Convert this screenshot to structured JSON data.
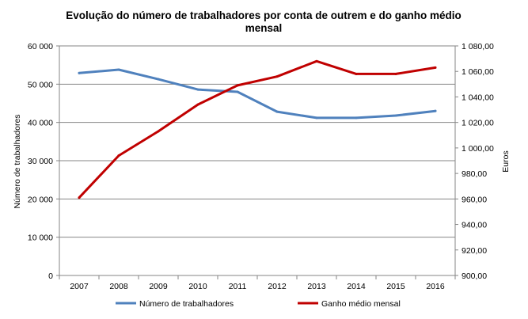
{
  "chart_data": {
    "type": "line",
    "title": "Evolução do número de trabalhadores por conta de outrem e do ganho médio mensal",
    "title_lines": [
      "Evolução do número de trabalhadores por conta de outrem e do ganho médio",
      "mensal"
    ],
    "categories": [
      "2007",
      "2008",
      "2009",
      "2010",
      "2011",
      "2012",
      "2013",
      "2014",
      "2015",
      "2016"
    ],
    "ylabel": "Número de trabalhadores",
    "y2label": "Euros",
    "ylim": [
      0,
      60000
    ],
    "y2lim": [
      900,
      1080
    ],
    "y_ticks": [
      "0",
      "10 000",
      "20 000",
      "30 000",
      "40 000",
      "50 000",
      "60 000"
    ],
    "y2_ticks": [
      "900,00",
      "920,00",
      "940,00",
      "960,00",
      "980,00",
      "1 000,00",
      "1 020,00",
      "1 040,00",
      "1 060,00",
      "1 080,00"
    ],
    "grid": true,
    "legend_position": "bottom",
    "series": [
      {
        "name": "Número de trabalhadores",
        "axis": "left",
        "color": "#4F81BD",
        "values": [
          52900,
          53800,
          51300,
          48600,
          48000,
          42800,
          41200,
          41200,
          41800,
          43000
        ]
      },
      {
        "name": "Ganho médio mensal",
        "axis": "right",
        "color": "#C00000",
        "values": [
          961,
          994,
          1013,
          1034,
          1049,
          1056,
          1068,
          1058,
          1058,
          1063
        ]
      }
    ]
  }
}
